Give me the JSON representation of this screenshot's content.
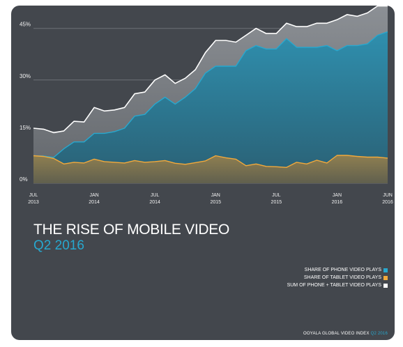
{
  "chart_data": {
    "type": "area",
    "title": "THE RISE OF MOBILE VIDEO",
    "subtitle": "Q2 2016",
    "ylim": [
      0,
      50
    ],
    "yticks": [
      {
        "value": 0,
        "label": "0%"
      },
      {
        "value": 15,
        "label": "15%"
      },
      {
        "value": 30,
        "label": "30%"
      },
      {
        "value": 45,
        "label": "45%"
      }
    ],
    "xticks": [
      {
        "index": 0,
        "line1": "JUL",
        "line2": "2013"
      },
      {
        "index": 6,
        "line1": "JAN",
        "line2": "2014"
      },
      {
        "index": 12,
        "line1": "JUL",
        "line2": "2014"
      },
      {
        "index": 18,
        "line1": "JAN",
        "line2": "2015"
      },
      {
        "index": 24,
        "line1": "JUL",
        "line2": "2015"
      },
      {
        "index": 30,
        "line1": "JAN",
        "line2": "2016"
      },
      {
        "index": 35,
        "line1": "JUN",
        "line2": "2016"
      }
    ],
    "grid": true,
    "legend_position": "bottom-right",
    "series": [
      {
        "name": "SUM OF PHONE + TABLET VIDEO PLAYS",
        "color": "#ffffff",
        "values": [
          16,
          15.7,
          14.7,
          15.2,
          18,
          17.8,
          22,
          21,
          21.3,
          22,
          26,
          26.5,
          30,
          31.5,
          29,
          30.5,
          33,
          38,
          41.5,
          41.5,
          41,
          43,
          45,
          43.5,
          43.5,
          46.5,
          45.5,
          45.5,
          46.5,
          46.5,
          47.5,
          49,
          48.5,
          49.5,
          51.5,
          51.5
        ]
      },
      {
        "name": "SHARE OF PHONE VIDEO PLAYS",
        "color": "#27a8cf",
        "values": [
          8,
          7.9,
          7.5,
          10,
          12,
          12,
          14.5,
          14.5,
          15,
          16,
          19.5,
          20,
          23,
          25,
          23,
          25,
          27.5,
          32,
          34,
          34,
          34,
          38.5,
          40,
          39,
          39,
          42,
          39.5,
          39.5,
          39.5,
          40,
          38.5,
          40,
          40,
          40.5,
          43,
          44
        ]
      },
      {
        "name": "SHARE OF TABLET VIDEO PLAYS",
        "color": "#f2a93b",
        "values": [
          8,
          7.8,
          7.2,
          5.6,
          6.1,
          5.9,
          7,
          6.3,
          6.1,
          5.9,
          6.6,
          6.1,
          6.3,
          6.6,
          5.8,
          5.5,
          6,
          6.5,
          8,
          7.4,
          7,
          5.1,
          5.6,
          4.9,
          4.8,
          4.6,
          6.1,
          5.6,
          6.7,
          5.9,
          8.1,
          8.1,
          7.8,
          7.6,
          7.6,
          7.3
        ]
      }
    ]
  },
  "legend": {
    "phone": "SHARE OF PHONE VIDEO PLAYS",
    "tablet": "SHARE OF TABLET VIDEO PLAYS",
    "sum": "SUM OF PHONE + TABLET VIDEO PLAYS"
  },
  "colors": {
    "background": "#43474d",
    "phone": "#27a8cf",
    "tablet": "#f2a93b",
    "sum": "#ffffff"
  },
  "footer": {
    "source": "OOYALA GLOBAL VIDEO INDEX",
    "period": "Q2 2016"
  }
}
